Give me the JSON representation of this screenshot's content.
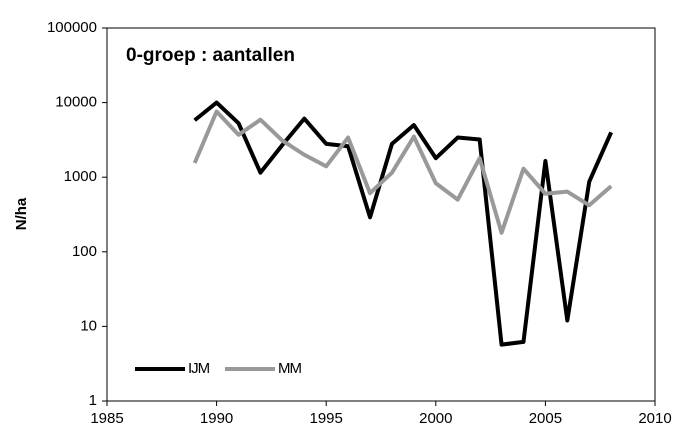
{
  "chart_data": {
    "type": "line",
    "title": "0-groep : aantallen",
    "y_label": "N/ha",
    "x": [
      1989,
      1990,
      1991,
      1992,
      1993,
      1994,
      1995,
      1996,
      1997,
      1998,
      1999,
      2000,
      2001,
      2002,
      2003,
      2004,
      2005,
      2006,
      2007,
      2008
    ],
    "series": [
      {
        "name": "IJM",
        "color": "#000000",
        "values": [
          5800,
          10000,
          5300,
          1150,
          2700,
          6100,
          2800,
          2600,
          290,
          2800,
          5000,
          1800,
          3400,
          3200,
          5.7,
          6.2,
          1650,
          12,
          870,
          4000
        ]
      },
      {
        "name": "MM",
        "color": "#999999",
        "values": [
          1550,
          7600,
          3700,
          5900,
          3100,
          2000,
          1400,
          3400,
          610,
          1150,
          3500,
          830,
          500,
          1800,
          180,
          1300,
          600,
          640,
          420,
          760
        ]
      }
    ],
    "xlim": [
      1985,
      2010
    ],
    "xticks": [
      1985,
      1990,
      1995,
      2000,
      2005,
      2010
    ],
    "ylim": [
      1,
      100000
    ],
    "yticks": [
      1,
      10,
      100,
      1000,
      10000,
      100000
    ],
    "log_y": true,
    "grid": false,
    "legend": "lower left"
  }
}
